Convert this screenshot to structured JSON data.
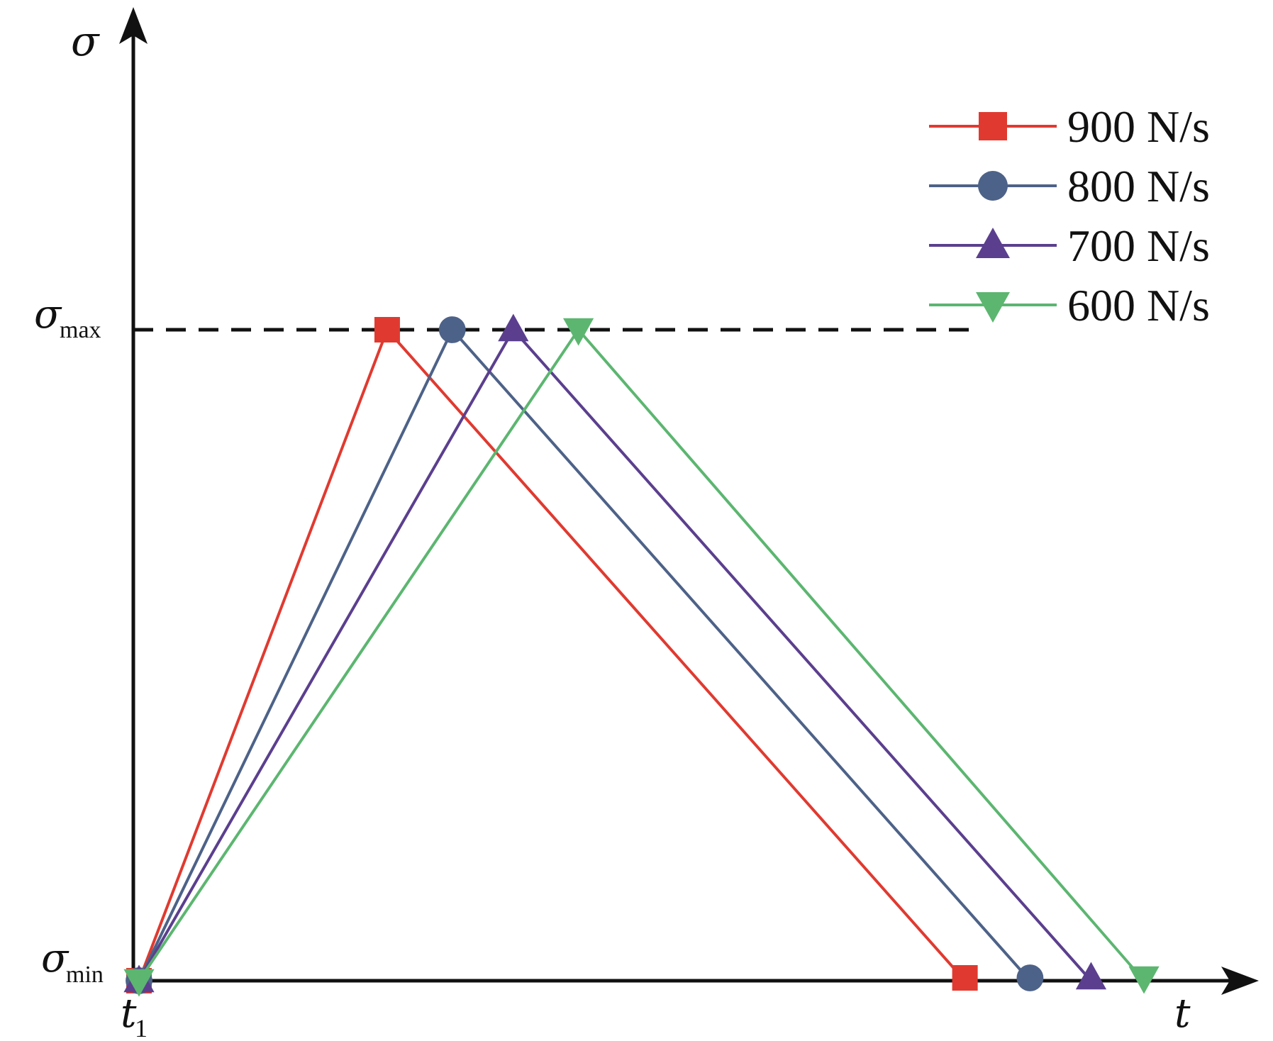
{
  "chart_data": {
    "type": "line",
    "x_axis_label": "t",
    "y_axis_label": "σ",
    "x_tick": {
      "symbol": "t",
      "subscript": "1"
    },
    "y_ticks": [
      {
        "symbol": "σ",
        "subscript": "max",
        "value": 1
      },
      {
        "symbol": "σ",
        "subscript": "min",
        "value": 0
      }
    ],
    "reference_line": {
      "style": "dashed",
      "y": 1,
      "x_range": [
        0,
        1025
      ],
      "color": "#111111"
    },
    "x_range": [
      0,
      1350
    ],
    "y_range": [
      0,
      1.5
    ],
    "legend_position": "top-right",
    "grid": false,
    "series": [
      {
        "name": "900 N/s",
        "color": "#e03a30",
        "marker": "square",
        "points": [
          {
            "x": 0,
            "y": 0
          },
          {
            "x": 305,
            "y": 1
          },
          {
            "x": 1015,
            "y": 0
          }
        ]
      },
      {
        "name": "800 N/s",
        "color": "#4d6288",
        "marker": "circle",
        "points": [
          {
            "x": 0,
            "y": 0
          },
          {
            "x": 385,
            "y": 1
          },
          {
            "x": 1095,
            "y": 0
          }
        ]
      },
      {
        "name": "700 N/s",
        "color": "#5b3f8e",
        "marker": "triangle-up",
        "points": [
          {
            "x": 0,
            "y": 0
          },
          {
            "x": 460,
            "y": 1
          },
          {
            "x": 1170,
            "y": 0
          }
        ]
      },
      {
        "name": "600 N/s",
        "color": "#5cb670",
        "marker": "triangle-down",
        "points": [
          {
            "x": 0,
            "y": 0
          },
          {
            "x": 540,
            "y": 1
          },
          {
            "x": 1235,
            "y": 0
          }
        ]
      }
    ]
  }
}
